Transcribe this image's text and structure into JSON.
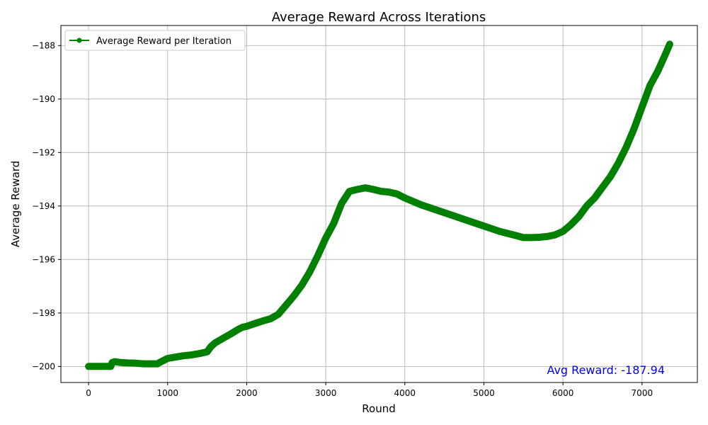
{
  "chart_data": {
    "type": "line",
    "title": "Average Reward Across Iterations",
    "xlabel": "Round",
    "ylabel": "Average Reward",
    "xlim": [
      -350,
      7700
    ],
    "ylim": [
      -200.6,
      -187.25
    ],
    "xticks": [
      0,
      1000,
      2000,
      3000,
      4000,
      5000,
      6000,
      7000
    ],
    "yticks": [
      -200,
      -198,
      -196,
      -194,
      -192,
      -190,
      -188
    ],
    "grid": true,
    "legend_position": "top-left",
    "series": [
      {
        "name": "Average Reward per Iteration",
        "color": "#008000",
        "marker": "circle",
        "x": [
          0,
          100,
          200,
          280,
          300,
          330,
          400,
          500,
          600,
          700,
          800,
          870,
          900,
          1000,
          1100,
          1200,
          1300,
          1400,
          1500,
          1550,
          1600,
          1700,
          1800,
          1900,
          1950,
          2000,
          2100,
          2200,
          2300,
          2400,
          2500,
          2600,
          2700,
          2800,
          2900,
          3000,
          3100,
          3200,
          3300,
          3400,
          3500,
          3600,
          3700,
          3800,
          3900,
          4000,
          4200,
          4400,
          4600,
          4800,
          5000,
          5200,
          5400,
          5500,
          5600,
          5700,
          5800,
          5900,
          6000,
          6100,
          6200,
          6300,
          6400,
          6500,
          6600,
          6700,
          6800,
          6900,
          7000,
          7100,
          7200,
          7300,
          7350
        ],
        "y": [
          -200.0,
          -200.0,
          -200.0,
          -200.0,
          -199.85,
          -199.82,
          -199.85,
          -199.87,
          -199.88,
          -199.9,
          -199.9,
          -199.9,
          -199.85,
          -199.7,
          -199.65,
          -199.6,
          -199.57,
          -199.52,
          -199.45,
          -199.25,
          -199.12,
          -198.95,
          -198.78,
          -198.6,
          -198.53,
          -198.5,
          -198.4,
          -198.3,
          -198.22,
          -198.05,
          -197.7,
          -197.35,
          -196.95,
          -196.45,
          -195.85,
          -195.2,
          -194.65,
          -193.9,
          -193.45,
          -193.38,
          -193.32,
          -193.38,
          -193.45,
          -193.48,
          -193.55,
          -193.7,
          -193.95,
          -194.15,
          -194.35,
          -194.55,
          -194.75,
          -194.95,
          -195.1,
          -195.18,
          -195.18,
          -195.17,
          -195.14,
          -195.08,
          -194.95,
          -194.7,
          -194.4,
          -194.0,
          -193.7,
          -193.3,
          -192.9,
          -192.4,
          -191.8,
          -191.1,
          -190.3,
          -189.5,
          -188.95,
          -188.3,
          -187.95
        ]
      }
    ],
    "annotation": {
      "text": "Avg Reward: -187.94",
      "color": "#0000ff"
    }
  }
}
